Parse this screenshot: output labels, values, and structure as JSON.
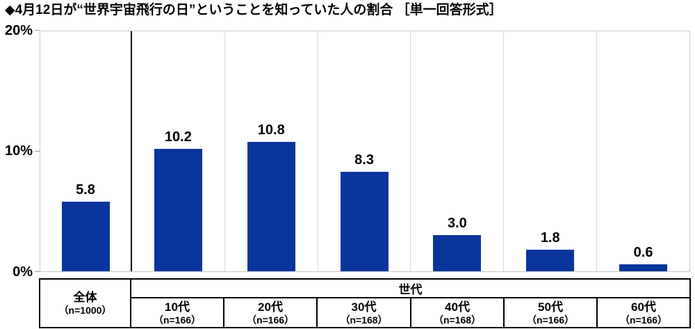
{
  "title": "◆4月12日が“世界宇宙飛行の日”ということを知っていた人の割合 ［単一回答形式］",
  "chart_data": {
    "type": "bar",
    "title": "◆4月12日が“世界宇宙飛行の日”ということを知っていた人の割合 ［単一回答形式］",
    "categories": [
      "全体",
      "10代",
      "20代",
      "30代",
      "40代",
      "50代",
      "60代"
    ],
    "sample_sizes": [
      "（n=1000）",
      "（n=166）",
      "（n=166）",
      "（n=168）",
      "（n=168）",
      "（n=166）",
      "（n=166）"
    ],
    "values": [
      5.8,
      10.2,
      10.8,
      8.3,
      3.0,
      1.8,
      0.6
    ],
    "value_labels": [
      "5.8",
      "10.2",
      "10.8",
      "8.3",
      "3.0",
      "1.8",
      "0.6"
    ],
    "group_header": "世代",
    "xlabel": "",
    "ylabel": "",
    "ylim": [
      0,
      20
    ],
    "yticks": [
      {
        "label": "20%",
        "value": 20
      },
      {
        "label": "10%",
        "value": 10
      },
      {
        "label": "0%",
        "value": 0
      }
    ],
    "legend": "none",
    "grid": "vertical category separators only, no horizontal gridlines",
    "bar_color": "#0a359c",
    "separator_color_overall": "#000000",
    "separator_color_generations": "#d8d8d8",
    "axis_border_color": "#c9c9c9"
  }
}
